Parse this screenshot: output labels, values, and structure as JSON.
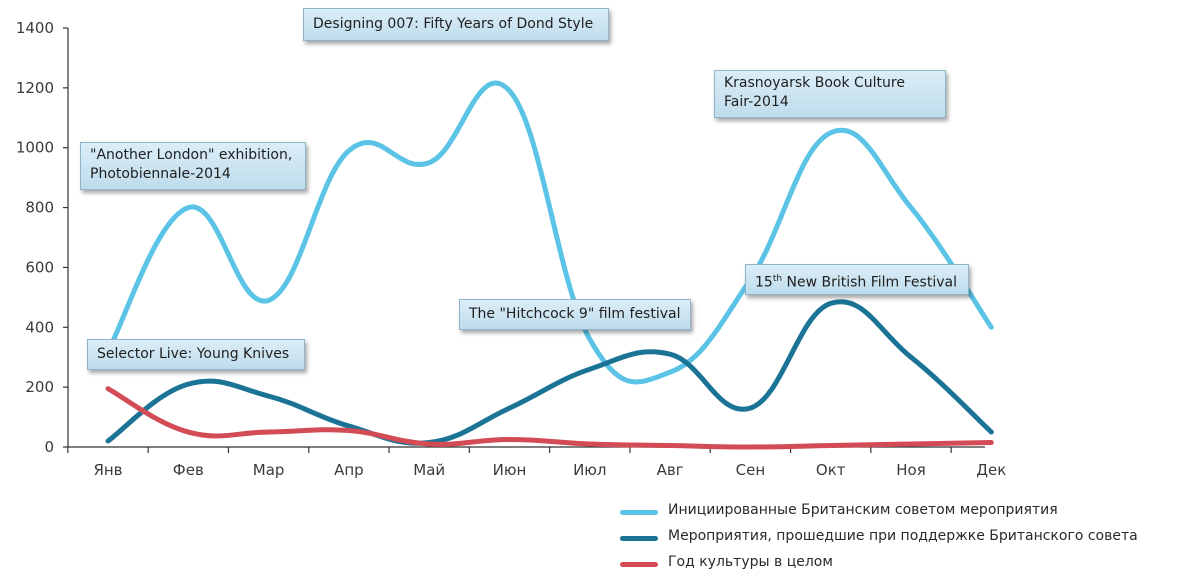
{
  "chart_data": {
    "type": "line",
    "categories": [
      "Янв",
      "Фев",
      "Мар",
      "Апр",
      "Май",
      "Июн",
      "Июл",
      "Авг",
      "Сен",
      "Окт",
      "Ноя",
      "Дек"
    ],
    "ylim": [
      0,
      1400
    ],
    "yticks": [
      0,
      200,
      400,
      600,
      800,
      1000,
      1200,
      1400
    ],
    "series": [
      {
        "name": "Инициированные Британским советом мероприятия",
        "color": "#5bc4e6",
        "values": [
          320,
          800,
          490,
          990,
          950,
          1190,
          360,
          250,
          560,
          1050,
          800,
          400
        ]
      },
      {
        "name": "Мероприятия, прошедшие при поддержке Британского совета",
        "color": "#1b7396",
        "values": [
          20,
          210,
          170,
          70,
          15,
          130,
          260,
          310,
          130,
          480,
          300,
          50
        ]
      },
      {
        "name": "Год культуры в целом",
        "color": "#d24b55",
        "values": [
          195,
          50,
          50,
          55,
          10,
          25,
          10,
          5,
          0,
          5,
          10,
          15
        ]
      }
    ],
    "annotations": [
      {
        "id": "bond",
        "text": "Designing 007: Fifty Years of Dond Style"
      },
      {
        "id": "london",
        "text": "\"Another London\" exhibition, Photobiennale-2014"
      },
      {
        "id": "krasnoyarsk",
        "text": "Krasnoyarsk Book Culture Fair-2014"
      },
      {
        "id": "hitchcock",
        "text": "The \"Hitchcock 9\" film festival"
      },
      {
        "id": "film-festival",
        "text": "15th New British Film Festival"
      },
      {
        "id": "selector",
        "text": "Selector Live: Young Knives"
      }
    ],
    "legend_position": "bottom-right",
    "grid": false
  }
}
